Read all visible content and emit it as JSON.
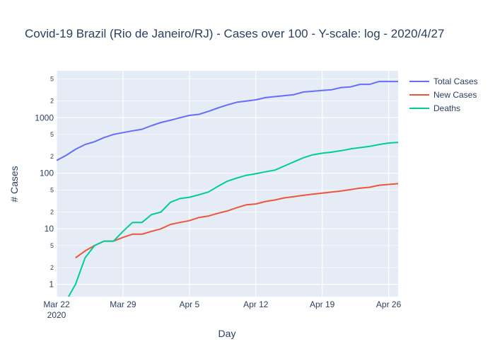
{
  "chart_data": {
    "type": "line",
    "title": "Covid-19 Brazil (Rio de Janeiro/RJ) - Cases over 100 - Y-scale: log - 2020/4/27",
    "xlabel": "Day",
    "ylabel": "# Cases",
    "y_scale": "log",
    "xlim": [
      "2020-03-22",
      "2020-04-27"
    ],
    "ylim": [
      0.6,
      7000
    ],
    "grid": true,
    "legend_position": "top-right",
    "x_ticks": [
      "Mar 22",
      "Mar 29",
      "Apr 5",
      "Apr 12",
      "Apr 19",
      "Apr 26"
    ],
    "x_tick_dates": [
      "2020-03-22",
      "2020-03-29",
      "2020-04-05",
      "2020-04-12",
      "2020-04-19",
      "2020-04-26"
    ],
    "x_tick_sublabel": "2020",
    "y_major_ticks": [
      1,
      10,
      100,
      1000
    ],
    "y_major_tick_labels": [
      "1",
      "10",
      "100",
      "1000"
    ],
    "y_minor_ticks": [
      2,
      5,
      20,
      50,
      200,
      500,
      2000,
      5000
    ],
    "y_minor_tick_labels": [
      "2",
      "5",
      "2",
      "5",
      "2",
      "5",
      "2",
      "5"
    ],
    "x": [
      "2020-03-22",
      "2020-03-23",
      "2020-03-24",
      "2020-03-25",
      "2020-03-26",
      "2020-03-27",
      "2020-03-28",
      "2020-03-29",
      "2020-03-30",
      "2020-03-31",
      "2020-04-01",
      "2020-04-02",
      "2020-04-03",
      "2020-04-04",
      "2020-04-05",
      "2020-04-06",
      "2020-04-07",
      "2020-04-08",
      "2020-04-09",
      "2020-04-10",
      "2020-04-11",
      "2020-04-12",
      "2020-04-13",
      "2020-04-14",
      "2020-04-15",
      "2020-04-16",
      "2020-04-17",
      "2020-04-18",
      "2020-04-19",
      "2020-04-20",
      "2020-04-21",
      "2020-04-22",
      "2020-04-23",
      "2020-04-24",
      "2020-04-25",
      "2020-04-26",
      "2020-04-27"
    ],
    "series": [
      {
        "name": "Total Cases",
        "color": "#636efa",
        "values": [
          170,
          210,
          270,
          330,
          370,
          440,
          500,
          540,
          580,
          620,
          720,
          820,
          900,
          1000,
          1100,
          1150,
          1300,
          1500,
          1700,
          1900,
          2000,
          2100,
          2300,
          2400,
          2500,
          2600,
          2900,
          3000,
          3100,
          3200,
          3500,
          3600,
          4000,
          4000,
          4500,
          4500,
          4500
        ]
      },
      {
        "name": "New Cases",
        "color": "#ef553b",
        "values": [
          null,
          null,
          3,
          4,
          5,
          6,
          6,
          7,
          8,
          8,
          9,
          10,
          12,
          13,
          14,
          16,
          17,
          19,
          21,
          24,
          27,
          28,
          31,
          33,
          36,
          38,
          40,
          42,
          44,
          46,
          48,
          51,
          54,
          56,
          61,
          63,
          65
        ]
      },
      {
        "name": "Deaths",
        "color": "#00cc96",
        "values": [
          null,
          0.5,
          1,
          3,
          5,
          6,
          6,
          9,
          13,
          13,
          18,
          20,
          30,
          35,
          37,
          41,
          46,
          58,
          72,
          82,
          92,
          98,
          106,
          114,
          135,
          160,
          190,
          215,
          230,
          240,
          255,
          275,
          290,
          305,
          330,
          350,
          360
        ]
      }
    ]
  }
}
